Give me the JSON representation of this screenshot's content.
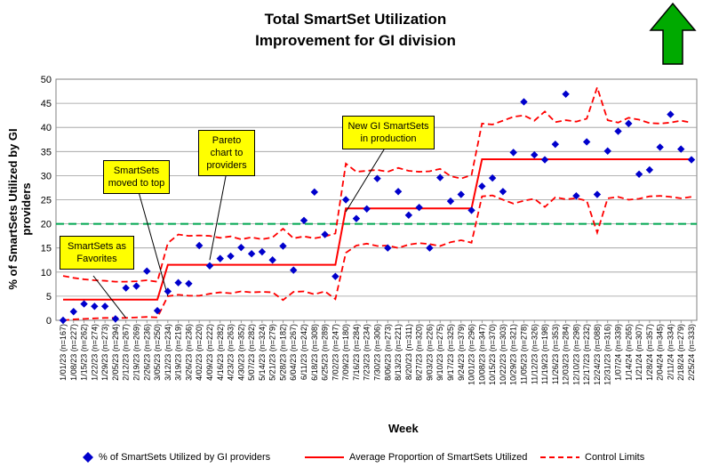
{
  "title_line1": "Total SmartSet Utilization",
  "title_line2": "Improvement for GI division",
  "colors": {
    "points": "#0000cc",
    "average": "#ff0000",
    "limits": "#ff0000",
    "target": "#00a651",
    "arrow": "#00aa00"
  },
  "icon": "up-arrow-icon",
  "annotations": {
    "favorites": [
      "SmartSets as",
      "Favorites"
    ],
    "moved": [
      "SmartSets",
      "moved to top"
    ],
    "pareto": [
      "Pareto",
      "chart to",
      "providers"
    ],
    "new_sets": [
      "New GI SmartSets",
      "in production"
    ]
  },
  "legend": {
    "points": "% of SmartSets Utilized by GI providers",
    "average": "Average Proportion of SmartSets Utilized",
    "limits": "Control Limits"
  },
  "chart_data": {
    "type": "scatter",
    "title": "Total SmartSet Utilization Improvement for GI division",
    "xlabel": "Week",
    "ylabel": "% of SmartSets Utilized by GI providers",
    "ylim": [
      0,
      50
    ],
    "yticks": [
      0,
      5,
      10,
      15,
      20,
      25,
      30,
      35,
      40,
      45,
      50
    ],
    "target": 20,
    "categories": [
      "1/01/23 (n=167)",
      "1/08/23 (n=227)",
      "1/15/23 (n=262)",
      "1/22/23 (n=274)",
      "1/29/23 (n=273)",
      "2/05/23 (n=294)",
      "2/12/23 (n=267)",
      "2/19/23 (n=269)",
      "2/26/23 (n=236)",
      "3/05/23 (n=250)",
      "3/12/23 (n=234)",
      "3/19/23 (n=219)",
      "3/26/23 (n=236)",
      "4/02/23 (n=220)",
      "4/09/23 (n=222)",
      "4/16/23 (n=282)",
      "4/23/23 (n=263)",
      "4/30/23 (n=352)",
      "5/07/23 (n=282)",
      "5/14/23 (n=324)",
      "5/21/23 (n=279)",
      "5/28/23 (n=182)",
      "6/04/23 (n=267)",
      "6/11/23 (n=242)",
      "6/18/23 (n=308)",
      "6/25/23 (n=289)",
      "7/02/23 (n=247)",
      "7/09/23 (n=180)",
      "7/16/23 (n=284)",
      "7/23/23 (n=234)",
      "7/30/23 (n=306)",
      "8/06/23 (n=273)",
      "8/13/23 (n=221)",
      "8/20/23 (n=311)",
      "8/27/23 (n=320)",
      "9/03/23 (n=226)",
      "9/10/23 (n=275)",
      "9/17/23 (n=325)",
      "9/24/23 (n=379)",
      "10/01/23 (n=296)",
      "10/08/23 (n=347)",
      "10/15/23 (n=370)",
      "10/22/23 (n=303)",
      "10/29/23 (n=321)",
      "11/05/23 (n=278)",
      "11/12/23 (n=326)",
      "11/19/23 (n=198)",
      "11/26/23 (n=353)",
      "12/03/23 (n=284)",
      "12/10/23 (n=298)",
      "12/17/23 (n=232)",
      "12/24/23 (n=088)",
      "12/31/23 (n=316)",
      "1/07/24 (n=339)",
      "1/14/24 (n=265)",
      "1/21/24 (n=307)",
      "1/28/24 (n=357)",
      "2/04/24 (n=345)",
      "2/11/24 (n=334)",
      "2/18/24 (n=279)",
      "2/25/24 (n=333)"
    ],
    "series": [
      {
        "name": "% of SmartSets Utilized by GI providers",
        "type": "scatter",
        "values": [
          0,
          1.8,
          3.4,
          2.9,
          2.9,
          0.3,
          6.7,
          7.1,
          10.2,
          2.0,
          6.0,
          7.8,
          7.6,
          15.5,
          11.3,
          12.8,
          13.3,
          15.1,
          13.8,
          14.2,
          12.5,
          15.4,
          10.4,
          20.7,
          26.6,
          17.8,
          9.1,
          25.0,
          21.1,
          23.1,
          29.4,
          15.0,
          26.7,
          21.8,
          23.4,
          15.0,
          29.6,
          24.7,
          26.1,
          22.8,
          27.8,
          29.5,
          26.7,
          34.8,
          45.3,
          34.3,
          33.3,
          36.5,
          46.9,
          25.8,
          37.0,
          26.1,
          35.1,
          39.2,
          40.8,
          30.3,
          31.2,
          35.9,
          42.7,
          35.5,
          33.3
        ]
      },
      {
        "name": "Average Proportion of SmartSets Utilized",
        "type": "step",
        "segments": [
          [
            0,
            9,
            4.3
          ],
          [
            10,
            26,
            11.5
          ],
          [
            27,
            39,
            23.2
          ],
          [
            40,
            60,
            33.4
          ]
        ]
      },
      {
        "name": "Control Limits (upper)",
        "type": "line",
        "values": [
          9.2,
          8.8,
          8.5,
          8.3,
          8.2,
          8.0,
          8.0,
          8.1,
          8.3,
          8.0,
          16.0,
          17.8,
          17.5,
          17.6,
          17.5,
          17.1,
          17.4,
          16.8,
          17.2,
          16.8,
          17.2,
          19.0,
          17.0,
          17.4,
          17.0,
          17.4,
          18.0,
          32.5,
          30.8,
          31.0,
          31.2,
          30.8,
          31.6,
          31.0,
          30.8,
          30.9,
          31.4,
          29.9,
          29.4,
          30.1,
          40.8,
          40.6,
          41.4,
          42.2,
          42.5,
          41.4,
          43.3,
          41.1,
          41.5,
          41.2,
          41.8,
          48.3,
          41.5,
          41.0,
          42.0,
          41.6,
          40.9,
          40.8,
          41.0,
          41.4,
          41.0
        ]
      },
      {
        "name": "Control Limits (lower)",
        "type": "line",
        "values": [
          0.0,
          0.2,
          0.3,
          0.4,
          0.5,
          0.5,
          0.5,
          0.6,
          0.7,
          0.6,
          5.0,
          5.3,
          5.1,
          5.1,
          5.5,
          5.8,
          5.6,
          6.0,
          5.8,
          5.9,
          5.8,
          4.2,
          5.9,
          6.0,
          5.4,
          6.0,
          4.4,
          14.0,
          15.5,
          15.9,
          15.4,
          15.5,
          15.0,
          15.7,
          16.0,
          15.8,
          15.4,
          16.2,
          16.6,
          16.1,
          25.7,
          25.9,
          25.0,
          24.2,
          24.8,
          25.2,
          23.5,
          25.5,
          25.1,
          25.3,
          24.8,
          18.2,
          25.3,
          25.6,
          25.0,
          25.2,
          25.7,
          25.8,
          25.6,
          25.3,
          25.6
        ]
      }
    ]
  }
}
